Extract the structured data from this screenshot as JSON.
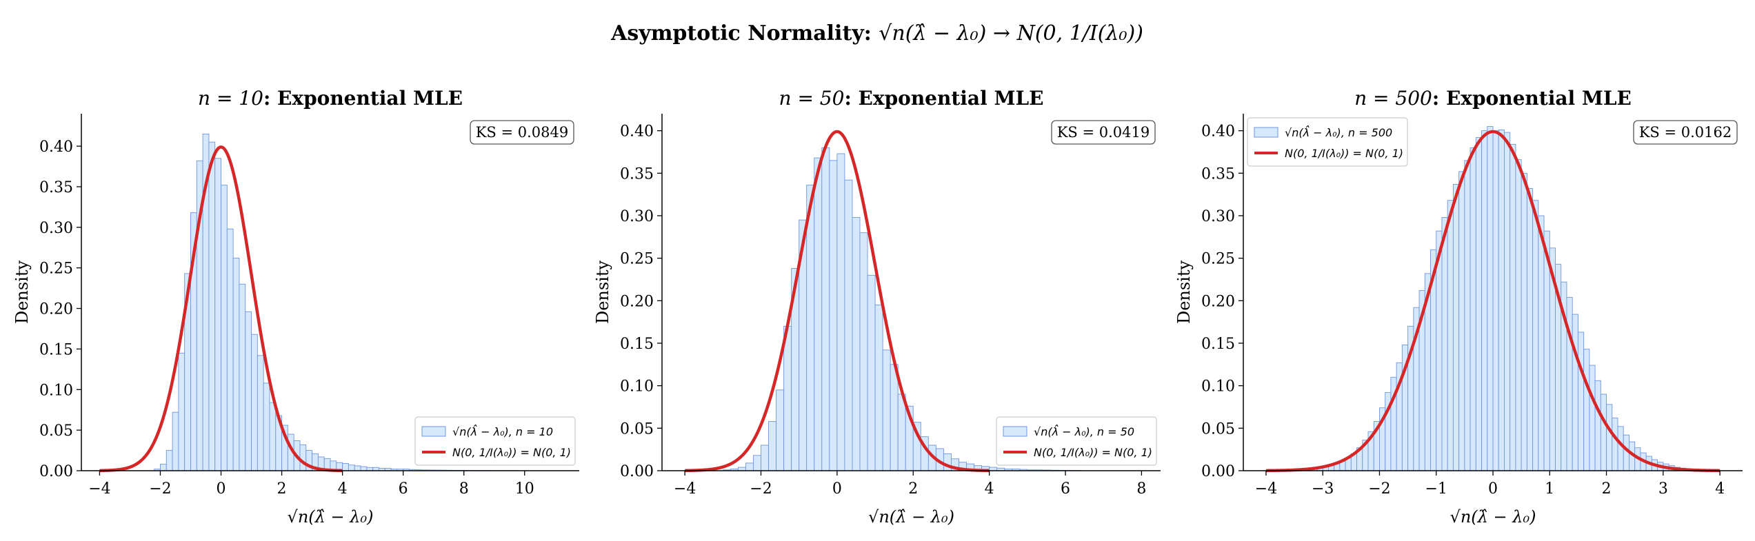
{
  "figure": {
    "title_bold": "Asymptotic Normality: ",
    "title_math": "√n(λ̂ − λ₀) → N(0, 1/I(λ₀))"
  },
  "colors": {
    "hist_fill": "#d6e8fb",
    "hist_edge": "#6f96e0",
    "curve": "#d62728"
  },
  "chart_data": [
    {
      "type": "bar",
      "title_math": "n = 10",
      "title_text": ": Exponential MLE",
      "xlabel": "√n(λ̂ − λ₀)",
      "ylabel": "Density",
      "xlim": [
        -4.6,
        11.8
      ],
      "ylim": [
        0,
        0.44
      ],
      "xticks": [
        -4,
        -2,
        0,
        2,
        4,
        6,
        8,
        10
      ],
      "yticks": [
        0.0,
        0.05,
        0.1,
        0.15,
        0.2,
        0.25,
        0.3,
        0.35,
        0.4
      ],
      "ytick_labels": [
        "0.00",
        "0.05",
        "0.10",
        "0.15",
        "0.20",
        "0.25",
        "0.30",
        "0.35",
        "0.40"
      ],
      "bin_start": -2.2,
      "bin_width": 0.2,
      "hist_values": [
        0.002,
        0.008,
        0.025,
        0.072,
        0.145,
        0.243,
        0.318,
        0.382,
        0.415,
        0.405,
        0.385,
        0.352,
        0.298,
        0.262,
        0.23,
        0.196,
        0.168,
        0.142,
        0.108,
        0.084,
        0.068,
        0.056,
        0.045,
        0.037,
        0.032,
        0.025,
        0.021,
        0.017,
        0.015,
        0.012,
        0.01,
        0.009,
        0.007,
        0.006,
        0.005,
        0.004,
        0.004,
        0.003,
        0.003,
        0.002,
        0.002,
        0.002,
        0.0015,
        0.0012,
        0.001,
        0.0009,
        0.0008,
        0.0007,
        0.0006,
        0.0005,
        0.0005,
        0.0004,
        0.0004,
        0.0003,
        0.0003,
        0.0003,
        0.0002,
        0.0002,
        0.0002,
        0.0002
      ],
      "curve_range": [
        -4,
        4
      ],
      "ks": "KS = 0.0849",
      "legend_position": "lower-right",
      "legend_hist": "√n(λ̂ − λ₀), n = 10",
      "legend_curve": "N(0, 1/I(λ₀)) = N(0, 1)"
    },
    {
      "type": "bar",
      "title_math": "n = 50",
      "title_text": ": Exponential MLE",
      "xlabel": "√n(λ̂ − λ₀)",
      "ylabel": "Density",
      "xlim": [
        -4.6,
        8.5
      ],
      "ylim": [
        0,
        0.42
      ],
      "xticks": [
        -4,
        -2,
        0,
        2,
        4,
        6,
        8
      ],
      "yticks": [
        0.0,
        0.05,
        0.1,
        0.15,
        0.2,
        0.25,
        0.3,
        0.35,
        0.4
      ],
      "ytick_labels": [
        "0.00",
        "0.05",
        "0.10",
        "0.15",
        "0.20",
        "0.25",
        "0.30",
        "0.35",
        "0.40"
      ],
      "bin_start": -3.0,
      "bin_width": 0.2,
      "hist_values": [
        0.001,
        0.002,
        0.004,
        0.009,
        0.018,
        0.03,
        0.058,
        0.095,
        0.17,
        0.238,
        0.295,
        0.336,
        0.368,
        0.38,
        0.365,
        0.373,
        0.342,
        0.298,
        0.28,
        0.23,
        0.195,
        0.142,
        0.125,
        0.09,
        0.076,
        0.057,
        0.04,
        0.03,
        0.026,
        0.02,
        0.014,
        0.01,
        0.008,
        0.006,
        0.005,
        0.004,
        0.003,
        0.002,
        0.002,
        0.0015,
        0.001,
        0.001,
        0.0008,
        0.0006,
        0.0005,
        0.0004,
        0.0003
      ],
      "curve_range": [
        -4,
        4
      ],
      "ks": "KS = 0.0419",
      "legend_position": "lower-right",
      "legend_hist": "√n(λ̂ − λ₀), n = 50",
      "legend_curve": "N(0, 1/I(λ₀)) = N(0, 1)"
    },
    {
      "type": "bar",
      "title_math": "n = 500",
      "title_text": ": Exponential MLE",
      "xlabel": "√n(λ̂ − λ₀)",
      "ylabel": "Density",
      "xlim": [
        -4.4,
        4.4
      ],
      "ylim": [
        0,
        0.42
      ],
      "xticks": [
        -4,
        -3,
        -2,
        -1,
        0,
        1,
        2,
        3,
        4
      ],
      "yticks": [
        0.0,
        0.05,
        0.1,
        0.15,
        0.2,
        0.25,
        0.3,
        0.35,
        0.4
      ],
      "ytick_labels": [
        "0.00",
        "0.05",
        "0.10",
        "0.15",
        "0.20",
        "0.25",
        "0.30",
        "0.35",
        "0.40"
      ],
      "bin_start": -3.5,
      "bin_width": 0.1,
      "hist_values": [
        0.001,
        0.002,
        0.002,
        0.003,
        0.004,
        0.005,
        0.006,
        0.008,
        0.011,
        0.015,
        0.02,
        0.027,
        0.036,
        0.046,
        0.058,
        0.074,
        0.092,
        0.11,
        0.127,
        0.148,
        0.17,
        0.192,
        0.212,
        0.232,
        0.26,
        0.282,
        0.298,
        0.318,
        0.337,
        0.352,
        0.365,
        0.38,
        0.392,
        0.4,
        0.405,
        0.4,
        0.401,
        0.398,
        0.384,
        0.366,
        0.35,
        0.332,
        0.318,
        0.3,
        0.282,
        0.262,
        0.243,
        0.222,
        0.204,
        0.184,
        0.163,
        0.143,
        0.124,
        0.106,
        0.09,
        0.078,
        0.062,
        0.052,
        0.042,
        0.034,
        0.027,
        0.021,
        0.017,
        0.013,
        0.01,
        0.008,
        0.006,
        0.004,
        0.003,
        0.002,
        0.002,
        0.001
      ],
      "curve_range": [
        -4,
        4
      ],
      "ks": "KS = 0.0162",
      "legend_position": "upper-left",
      "legend_hist": "√n(λ̂ − λ₀), n = 500",
      "legend_curve": "N(0, 1/I(λ₀)) = N(0, 1)"
    }
  ]
}
